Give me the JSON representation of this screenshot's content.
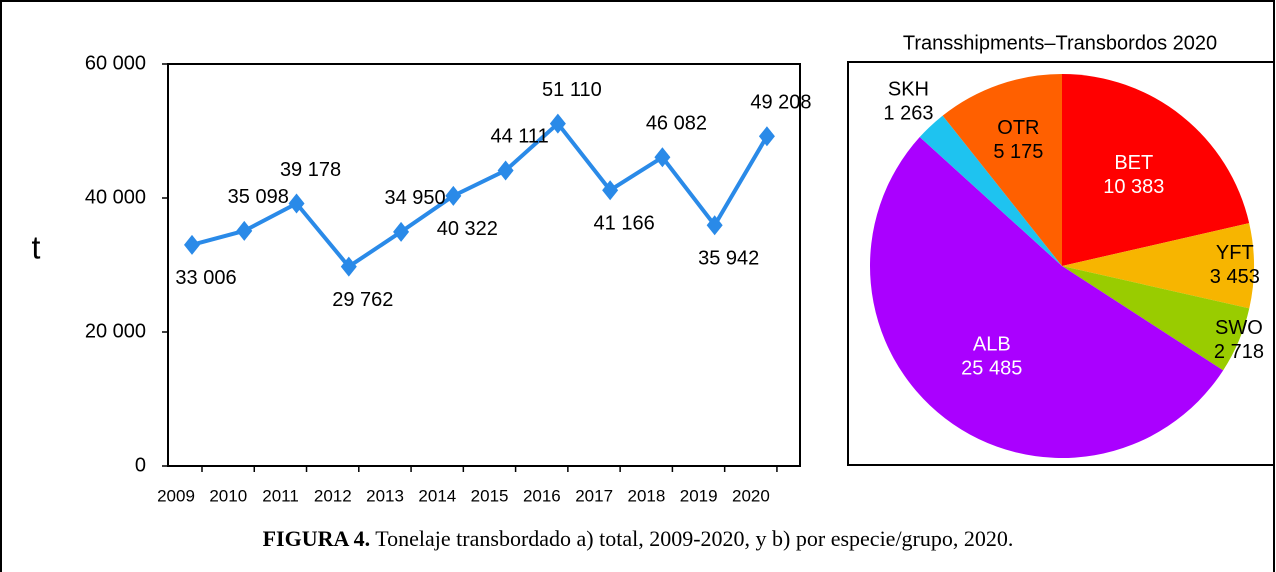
{
  "chart_data": [
    {
      "type": "line",
      "ylabel": "t",
      "categories": [
        "2009",
        "2010",
        "2011",
        "2012",
        "2013",
        "2014",
        "2015",
        "2016",
        "2017",
        "2018",
        "2019",
        "2020"
      ],
      "series": [
        {
          "color": "#2a8ae8",
          "values": [
            33006,
            35098,
            39178,
            29762,
            34950,
            40322,
            44111,
            51110,
            41166,
            46082,
            35942,
            49208
          ],
          "value_labels": [
            "33 006",
            "35 098",
            "39 178",
            "29 762",
            "34 950",
            "40 322",
            "44 111",
            "51 110",
            "41 166",
            "46 082",
            "35 942",
            "49 208"
          ]
        }
      ],
      "ylim": [
        0,
        60000
      ],
      "yticks": [
        0,
        {
          "value": 20000,
          "label": "20 000"
        },
        {
          "value": 40000,
          "label": "40 000"
        },
        {
          "value": 60000,
          "label": "60 000"
        }
      ]
    },
    {
      "type": "pie",
      "title": "Transshipments–Transbordos 2020",
      "categories": [
        "BET",
        "YFT",
        "SWO",
        "ALB",
        "SKH",
        "OTR"
      ],
      "values": [
        10383,
        3453,
        2718,
        25485,
        1263,
        5175
      ],
      "value_labels": [
        "10 383",
        "3 453",
        "2 718",
        "25 485",
        "1 263",
        "5 175"
      ],
      "colors": [
        "#ff0000",
        "#f7b500",
        "#99cc00",
        "#aa00ff",
        "#1ec3f0",
        "#ff6000"
      ]
    }
  ],
  "caption": {
    "label": "FIGURA 4.",
    "text": "Tonelaje transbordado a) total, 2009-2020, y b) por especie/grupo, 2020."
  }
}
